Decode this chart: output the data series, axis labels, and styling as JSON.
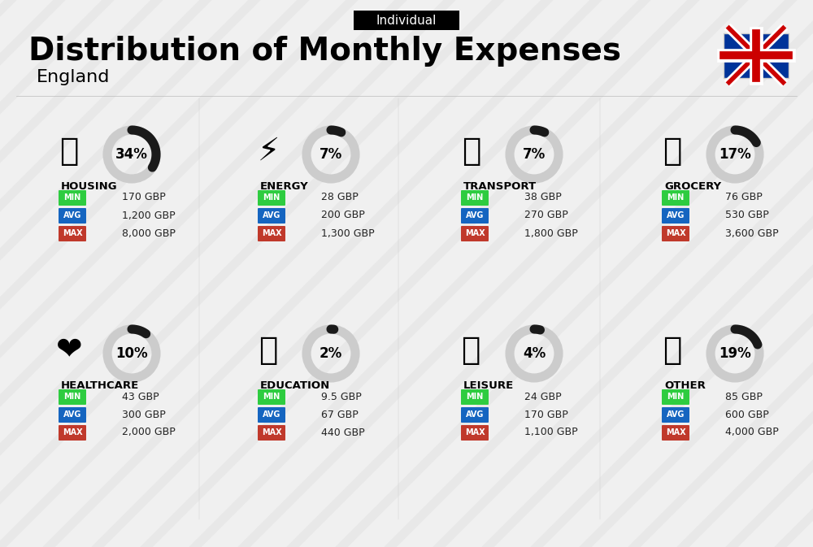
{
  "title": "Distribution of Monthly Expenses",
  "subtitle": "England",
  "tag": "Individual",
  "bg_color": "#f0f0f0",
  "categories": [
    {
      "name": "HOUSING",
      "pct": 34,
      "min": "170 GBP",
      "avg": "1,200 GBP",
      "max": "8,000 GBP",
      "icon_color": "#1565c0",
      "row": 0,
      "col": 0
    },
    {
      "name": "ENERGY",
      "pct": 7,
      "min": "28 GBP",
      "avg": "200 GBP",
      "max": "1,300 GBP",
      "icon_color": "#00acc1",
      "row": 0,
      "col": 1
    },
    {
      "name": "TRANSPORT",
      "pct": 7,
      "min": "38 GBP",
      "avg": "270 GBP",
      "max": "1,800 GBP",
      "icon_color": "#00acc1",
      "row": 0,
      "col": 2
    },
    {
      "name": "GROCERY",
      "pct": 17,
      "min": "76 GBP",
      "avg": "530 GBP",
      "max": "3,600 GBP",
      "icon_color": "#f57f17",
      "row": 0,
      "col": 3
    },
    {
      "name": "HEALTHCARE",
      "pct": 10,
      "min": "43 GBP",
      "avg": "300 GBP",
      "max": "2,000 GBP",
      "icon_color": "#e53935",
      "row": 1,
      "col": 0
    },
    {
      "name": "EDUCATION",
      "pct": 2,
      "min": "9.5 GBP",
      "avg": "67 GBP",
      "max": "440 GBP",
      "icon_color": "#43a047",
      "row": 1,
      "col": 1
    },
    {
      "name": "LEISURE",
      "pct": 4,
      "min": "24 GBP",
      "avg": "170 GBP",
      "max": "1,100 GBP",
      "icon_color": "#e53935",
      "row": 1,
      "col": 2
    },
    {
      "name": "OTHER",
      "pct": 19,
      "min": "85 GBP",
      "avg": "600 GBP",
      "max": "4,000 GBP",
      "icon_color": "#8d6e63",
      "row": 1,
      "col": 3
    }
  ],
  "min_color": "#2ecc40",
  "avg_color": "#1565c0",
  "max_color": "#c0392b",
  "donut_active": "#1a1a1a",
  "donut_inactive": "#cccccc",
  "label_colors": {
    "MIN": "#27ae60",
    "AVG": "#2980b9",
    "MAX": "#c0392b"
  }
}
